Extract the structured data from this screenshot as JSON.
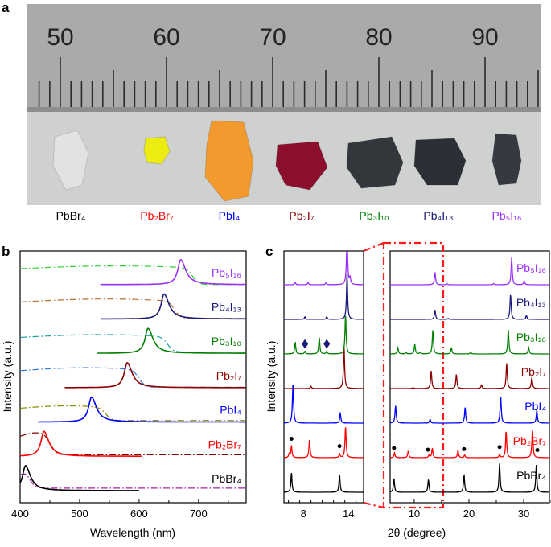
{
  "panels": {
    "a": "a",
    "b": "b",
    "c": "c"
  },
  "photo": {
    "ruler_numbers": [
      "50",
      "60",
      "70",
      "80",
      "90"
    ],
    "ruler_first_color": "#d8332a",
    "samples": [
      {
        "label": "PbBr₄",
        "color": "#000000",
        "crystal": "#e4e6e8"
      },
      {
        "label": "Pb₂Br₇",
        "color": "#ff0000",
        "crystal": "#ecec10"
      },
      {
        "label": "PbI₄",
        "color": "#0000ff",
        "crystal": "#f39a2e"
      },
      {
        "label": "Pb₂I₇",
        "color": "#8b0000",
        "crystal": "#8c0f2e"
      },
      {
        "label": "Pb₃I₁₀",
        "color": "#008000",
        "crystal": "#33363a"
      },
      {
        "label": "Pb₄I₁₃",
        "color": "#1a1a7a",
        "crystal": "#2b2f36"
      },
      {
        "label": "Pb₅I₁₆",
        "color": "#9b30ff",
        "crystal": "#353a40"
      }
    ]
  },
  "chart_data": [
    {
      "type": "line",
      "title": "",
      "xlabel": "Wavelength (nm)",
      "ylabel": "Intensity (a.u.)",
      "xlim": [
        400,
        780
      ],
      "xticks": [
        "400",
        "500",
        "600",
        "700"
      ],
      "xtick_values": [
        400,
        500,
        600,
        700
      ],
      "series": [
        {
          "name": "PbBr₄",
          "color": "#000000",
          "abs_color": "#a020a0",
          "pl_peak": 409,
          "pl_range": [
            400,
            600
          ],
          "abs_plateau": 0.75,
          "abs_edge": 418,
          "abs_tail": 0.1
        },
        {
          "name": "Pb₂Br₇",
          "color": "#ff0000",
          "abs_color": "#800000",
          "pl_peak": 440,
          "pl_range": [
            400,
            605
          ],
          "abs_plateau": 0.95,
          "abs_edge": 452,
          "abs_tail": 0.06
        },
        {
          "name": "PbI₄",
          "color": "#0000ff",
          "abs_color": "#8a8a00",
          "pl_peak": 520,
          "pl_range": [
            430,
            780
          ],
          "abs_plateau": 0.65,
          "abs_edge": 544,
          "abs_tail": 0.06
        },
        {
          "name": "Pb₂I₇",
          "color": "#8b0000",
          "abs_color": "#3a7bd5",
          "pl_peak": 580,
          "pl_range": [
            475,
            780
          ],
          "abs_plateau": 0.8,
          "abs_edge": 600,
          "abs_tail": 0.02
        },
        {
          "name": "Pb₃I₁₀",
          "color": "#008000",
          "abs_color": "#20a0a0",
          "pl_peak": 615,
          "pl_range": [
            530,
            780
          ],
          "abs_plateau": 0.75,
          "abs_edge": 648,
          "abs_tail": 0.05
        },
        {
          "name": "Pb₄I₁₃",
          "color": "#1a1a7a",
          "abs_color": "#b07030",
          "pl_peak": 642,
          "pl_range": [
            535,
            780
          ],
          "abs_plateau": 0.8,
          "abs_edge": 660,
          "abs_tail": 0.02
        },
        {
          "name": "Pb₅I₁₆",
          "color": "#9b30ff",
          "abs_color": "#30d030",
          "pl_peak": 670,
          "pl_range": [
            535,
            780
          ],
          "abs_plateau": 0.75,
          "abs_edge": 690,
          "abs_tail": 0.0
        }
      ]
    },
    {
      "type": "line",
      "title": "",
      "xlabel": "2θ (degree)",
      "ylabel": "Intensity (a.u.)",
      "inset_xlim": [
        5.4,
        16
      ],
      "inset_xticks": [
        "8",
        "14"
      ],
      "inset_xtick_values": [
        8,
        14
      ],
      "main_xlim": [
        5.6,
        34.7
      ],
      "main_xticks": [
        "10",
        "20",
        "30"
      ],
      "main_xtick_values": [
        10,
        20,
        30
      ],
      "zoom_region": [
        5.6,
        15.3
      ],
      "series": [
        {
          "name": "PbBr₄",
          "color": "#000000",
          "inset_peaks": [
            [
              6.4,
              0.6
            ],
            [
              12.8,
              0.55
            ]
          ],
          "peaks": [
            [
              6.3,
              0.45
            ],
            [
              12.6,
              0.4
            ],
            [
              19.1,
              0.55
            ],
            [
              25.6,
              0.9
            ],
            [
              32.3,
              0.85
            ]
          ],
          "markers": []
        },
        {
          "name": "Pb₂Br₇",
          "color": "#ff0000",
          "inset_peaks": [
            [
              6.1,
              0.12
            ],
            [
              6.4,
              0.35
            ],
            [
              8.8,
              0.55
            ],
            [
              12.8,
              0.12
            ],
            [
              13.6,
              0.95
            ]
          ],
          "peaks": [
            [
              6.4,
              0.15
            ],
            [
              8.9,
              0.2
            ],
            [
              12.7,
              0.08
            ],
            [
              13.3,
              0.3
            ],
            [
              18.0,
              0.22
            ],
            [
              19.2,
              0.08
            ],
            [
              25.6,
              0.1
            ],
            [
              26.8,
              0.85
            ],
            [
              31.6,
              0.9
            ]
          ],
          "markers": [
            {
              "shape": "dot",
              "inset": [
                6.4,
                12.8
              ],
              "main": [
                6.3,
                12.5,
                19.1,
                25.6,
                32.5
              ]
            }
          ]
        },
        {
          "name": "PbI₄",
          "color": "#0000ff",
          "inset_peaks": [
            [
              6.6,
              1.2
            ],
            [
              12.9,
              0.3
            ]
          ],
          "peaks": [
            [
              6.6,
              0.55
            ],
            [
              12.9,
              0.12
            ],
            [
              19.3,
              0.5
            ],
            [
              25.8,
              0.85
            ],
            [
              32.4,
              0.4
            ]
          ],
          "markers": []
        },
        {
          "name": "Pb₂I₇",
          "color": "#8b0000",
          "inset_peaks": [
            [
              9.0,
              0.07
            ],
            [
              13.4,
              1.3
            ]
          ],
          "peaks": [
            [
              9.8,
              0.03
            ],
            [
              13.1,
              0.55
            ],
            [
              17.7,
              0.45
            ],
            [
              22.3,
              0.12
            ],
            [
              26.9,
              0.8
            ],
            [
              31.5,
              0.35
            ]
          ],
          "markers": []
        },
        {
          "name": "Pb₃I₁₀",
          "color": "#008000",
          "inset_peaks": [
            [
              6.9,
              0.35
            ],
            [
              8.2,
              0.08
            ],
            [
              10.1,
              0.5
            ],
            [
              11.1,
              0.08
            ],
            [
              13.6,
              1.2
            ]
          ],
          "peaks": [
            [
              7.0,
              0.2
            ],
            [
              8.5,
              0.05
            ],
            [
              10.1,
              0.3
            ],
            [
              11.1,
              0.05
            ],
            [
              13.4,
              0.75
            ],
            [
              16.8,
              0.2
            ],
            [
              20.3,
              0.05
            ],
            [
              27.2,
              0.75
            ],
            [
              30.9,
              0.2
            ]
          ],
          "markers": [
            {
              "shape": "diamond",
              "inset": [
                8.2,
                11.1
              ],
              "main": []
            }
          ]
        },
        {
          "name": "Pb₄I₁₃",
          "color": "#1a1a7a",
          "inset_peaks": [
            [
              8.2,
              0.08
            ],
            [
              11.1,
              0.08
            ],
            [
              13.8,
              1.4
            ]
          ],
          "peaks": [
            [
              13.8,
              0.3
            ],
            [
              16.2,
              0.03
            ],
            [
              27.6,
              0.8
            ],
            [
              30.5,
              0.12
            ]
          ],
          "markers": []
        },
        {
          "name": "Pb₅I₁₆",
          "color": "#9b30ff",
          "inset_peaks": [
            [
              6.9,
              0.07
            ],
            [
              8.6,
              0.07
            ],
            [
              11.0,
              0.06
            ],
            [
              13.8,
              1.6
            ],
            [
              14.2,
              0.2
            ]
          ],
          "peaks": [
            [
              13.8,
              0.4
            ],
            [
              16.0,
              0.03
            ],
            [
              24.5,
              0.04
            ],
            [
              27.8,
              0.85
            ],
            [
              30.1,
              0.12
            ]
          ],
          "markers": []
        }
      ]
    }
  ]
}
